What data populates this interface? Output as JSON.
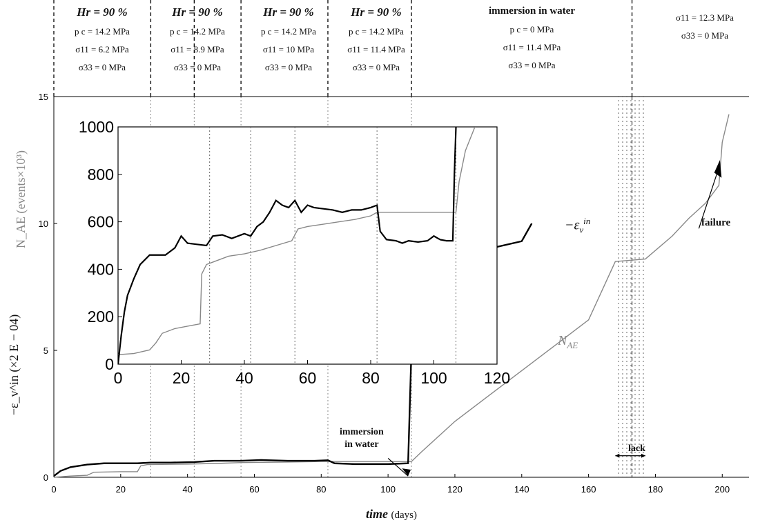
{
  "chart_data": [
    {
      "type": "line",
      "xlabel_main": "time",
      "xlabel_unit": "(days)",
      "ylabel_left": "−ε_v^in (×2 E − 04)",
      "ylabel_left_alt": "N_AE (events×10³)",
      "xlim": [
        0,
        208
      ],
      "ylim": [
        0,
        15
      ],
      "xticks": [
        0,
        20,
        40,
        60,
        80,
        100,
        120,
        140,
        160,
        180,
        200
      ],
      "yticks": [
        0,
        5,
        10,
        15
      ],
      "annotations": {
        "immersion": "immersion\nin water",
        "failure": "failure",
        "lack": "lack",
        "nae_label": "N",
        "nae_sub": "AE",
        "eps_label": "−ε",
        "eps_sub": "v",
        "eps_sup": "in"
      },
      "stage_boundaries": [
        29,
        42,
        56,
        82,
        107,
        173
      ],
      "lack_interval": [
        168,
        177
      ],
      "series": [
        {
          "name": "−ε_v^in",
          "color": "#000000",
          "x": [
            0,
            2,
            5,
            10,
            15,
            20,
            25,
            29,
            35,
            42,
            48,
            56,
            62,
            70,
            78,
            82,
            84,
            90,
            100,
            106,
            107,
            108,
            110,
            115,
            120,
            130,
            140,
            143
          ],
          "y": [
            0.05,
            0.25,
            0.4,
            0.5,
            0.55,
            0.55,
            0.55,
            0.58,
            0.58,
            0.6,
            0.65,
            0.65,
            0.68,
            0.65,
            0.65,
            0.67,
            0.55,
            0.52,
            0.52,
            0.55,
            5.0,
            7.8,
            8.2,
            8.5,
            8.7,
            9.0,
            9.3,
            10.0
          ]
        },
        {
          "name": "N_AE",
          "color": "#888888",
          "x": [
            0,
            5,
            10,
            12,
            20,
            25,
            26,
            28,
            40,
            50,
            56,
            70,
            80,
            82,
            100,
            107,
            110,
            120,
            130,
            140,
            150,
            160,
            168,
            177,
            185,
            190,
            195,
            199,
            200,
            202
          ],
          "y": [
            0.0,
            0.05,
            0.08,
            0.2,
            0.22,
            0.22,
            0.45,
            0.5,
            0.52,
            0.55,
            0.58,
            0.6,
            0.62,
            0.62,
            0.62,
            0.62,
            1.0,
            2.2,
            3.2,
            4.2,
            5.2,
            6.2,
            8.5,
            8.6,
            9.5,
            10.2,
            10.8,
            11.5,
            13.2,
            14.3
          ]
        }
      ]
    },
    {
      "type": "line",
      "xlim": [
        0,
        120
      ],
      "ylim": [
        0,
        1000
      ],
      "xticks": [
        0,
        20,
        40,
        60,
        80,
        100,
        120
      ],
      "yticks": [
        0,
        200,
        400,
        600,
        800,
        1000
      ],
      "stage_boundaries": [
        29,
        42,
        56,
        82,
        107
      ],
      "series": [
        {
          "name": "−ε_v^in",
          "color": "#000000",
          "x": [
            0,
            1,
            2,
            3,
            5,
            7,
            10,
            15,
            18,
            20,
            22,
            25,
            28,
            30,
            33,
            36,
            40,
            42,
            44,
            46,
            48,
            50,
            52,
            54,
            56,
            58,
            60,
            62,
            65,
            68,
            71,
            74,
            77,
            80,
            82,
            83,
            85,
            88,
            90,
            92,
            95,
            98,
            100,
            102,
            104,
            106,
            106.5,
            107
          ],
          "y": [
            0,
            120,
            220,
            290,
            360,
            420,
            460,
            460,
            490,
            540,
            510,
            505,
            500,
            540,
            545,
            530,
            550,
            540,
            580,
            600,
            640,
            690,
            670,
            660,
            690,
            640,
            670,
            660,
            655,
            650,
            640,
            650,
            650,
            660,
            670,
            560,
            525,
            520,
            510,
            520,
            515,
            520,
            540,
            525,
            520,
            520,
            800,
            1000
          ]
        },
        {
          "name": "N_AE",
          "color": "#888888",
          "x": [
            0,
            5,
            10,
            12,
            14,
            18,
            22,
            26,
            26.5,
            28,
            30,
            35,
            40,
            45,
            50,
            55,
            57,
            60,
            65,
            70,
            75,
            80,
            82,
            85,
            90,
            95,
            100,
            105,
            107,
            108,
            110,
            113
          ],
          "y": [
            40,
            45,
            60,
            90,
            130,
            150,
            160,
            170,
            380,
            420,
            430,
            455,
            465,
            480,
            500,
            520,
            570,
            580,
            590,
            600,
            610,
            625,
            640,
            640,
            640,
            640,
            640,
            640,
            640,
            770,
            900,
            1000
          ]
        }
      ]
    }
  ],
  "header": {
    "stages": [
      {
        "hr": "Hr = 90 %",
        "pc": "p c = 14.2 MPa",
        "s11": "σ11 = 6.2 MPa",
        "s33": "σ33 = 0 MPa"
      },
      {
        "hr": "Hr = 90 %",
        "pc": "p c = 14.2 MPa",
        "s11": "σ11 = 8.9 MPa",
        "s33": "σ33 = 0 MPa"
      },
      {
        "hr": "Hr = 90 %",
        "pc": "p c = 14.2 MPa",
        "s11": "σ11 = 10 MPa",
        "s33": "σ33 = 0 MPa"
      },
      {
        "hr": "Hr = 90 %",
        "pc": "p c = 14.2 MPa",
        "s11": "σ11 = 11.4 MPa",
        "s33": "σ33 = 0 MPa"
      },
      {
        "hr": "immersion in water",
        "pc": "p c = 0 MPa",
        "s11": "σ11 = 11.4 MPa",
        "s33": "σ33 = 0 MPa"
      },
      {
        "hr": "",
        "pc": "",
        "s11": "σ11 = 12.3 MPa",
        "s33": "σ33 = 0 MPa"
      }
    ]
  }
}
